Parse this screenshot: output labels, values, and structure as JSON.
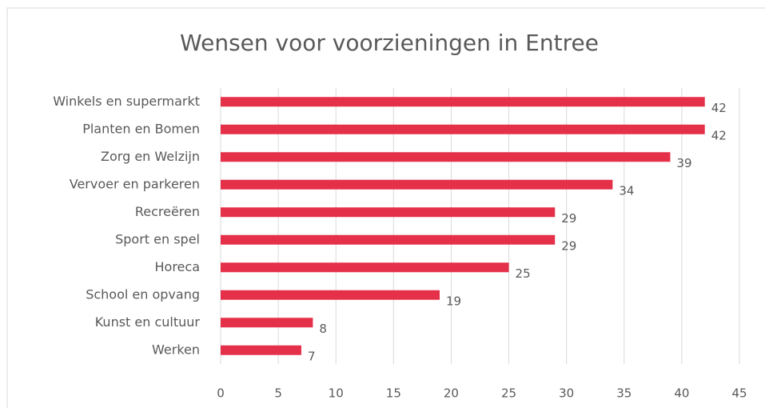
{
  "chart_data": {
    "type": "bar",
    "orientation": "horizontal",
    "title": "Wensen voor voorzieningen in Entree",
    "categories": [
      "Winkels en supermarkt",
      "Planten en Bomen",
      "Zorg en Welzijn",
      "Vervoer en parkeren",
      "Recreëren",
      "Sport en spel",
      "Horeca",
      "School en opvang",
      "Kunst en cultuur",
      "Werken"
    ],
    "values": [
      42,
      42,
      39,
      34,
      29,
      29,
      25,
      19,
      8,
      7
    ],
    "color": "#e5304a",
    "xlim": [
      0,
      45
    ],
    "xticks": [
      0,
      5,
      10,
      15,
      20,
      25,
      30,
      35,
      40,
      45
    ],
    "grid": true
  }
}
